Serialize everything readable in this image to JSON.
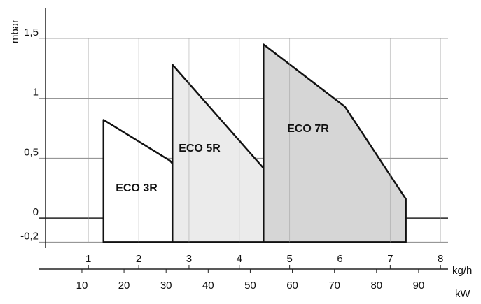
{
  "chart_data": {
    "type": "area",
    "y_label": "mbar",
    "x_label": "kg/h",
    "x2_label": "kW",
    "ylim": [
      -0.25,
      1.75
    ],
    "yticks": [
      {
        "value": -0.2,
        "label": "-0,2"
      },
      0,
      {
        "value": 0.5,
        "label": "0,5"
      },
      1,
      {
        "value": 1.5,
        "label": "1,5"
      }
    ],
    "xlim": [
      -0.2,
      8.15
    ],
    "xticks": [
      1,
      2,
      3,
      4,
      5,
      6,
      7,
      8
    ],
    "x2lim": [
      -2.8,
      97
    ],
    "x2ticks": [
      10,
      20,
      30,
      40,
      50,
      60,
      70,
      80,
      90
    ],
    "grid": true,
    "series": [
      {
        "name": "ECO 3R",
        "color": "#ffffff",
        "x": [
          1.3,
          1.3,
          2.62,
          3.02,
          3.02
        ],
        "values": [
          -0.2,
          0.82,
          0.48,
          0.29,
          -0.2
        ]
      },
      {
        "name": "ECO 5R",
        "color": "#ebebeb",
        "x": [
          2.67,
          2.67,
          5.0,
          5.0
        ],
        "values": [
          -0.2,
          1.28,
          0.17,
          -0.2
        ]
      },
      {
        "name": "ECO 7R",
        "color": "#d6d6d6",
        "x": [
          4.48,
          4.48,
          6.1,
          7.31,
          7.31
        ],
        "values": [
          -0.2,
          1.45,
          0.93,
          0.16,
          -0.2
        ]
      }
    ]
  }
}
